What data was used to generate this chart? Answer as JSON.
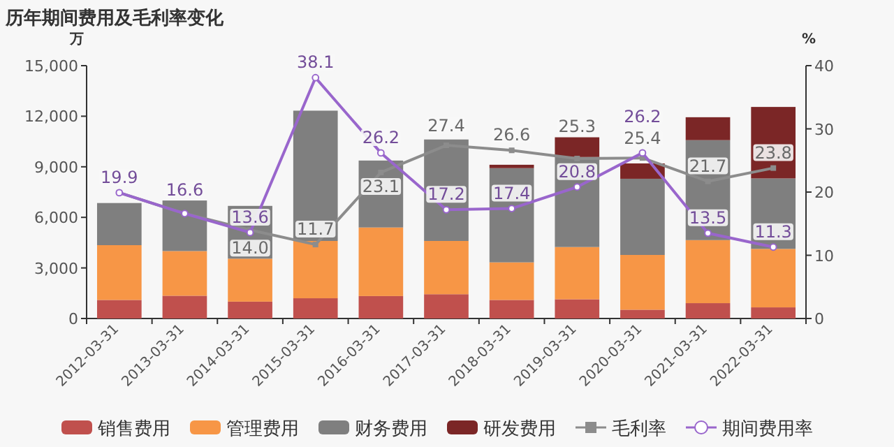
{
  "chart_data": {
    "type": "bar",
    "title": "历年期间费用及毛利率变化",
    "ylabel": "万",
    "y2label": "%",
    "categories": [
      "2012-03-31",
      "2013-03-31",
      "2014-03-31",
      "2015-03-31",
      "2016-03-31",
      "2017-03-31",
      "2018-03-31",
      "2019-03-31",
      "2020-03-31",
      "2021-03-31",
      "2022-03-31"
    ],
    "stacked": true,
    "series": [
      {
        "name": "销售费用",
        "color": "#c0504d",
        "values": [
          1100,
          1350,
          1000,
          1200,
          1330,
          1440,
          1100,
          1140,
          520,
          910,
          660
        ]
      },
      {
        "name": "管理费用",
        "color": "#f79646",
        "values": [
          3250,
          2650,
          2550,
          3400,
          4070,
          3160,
          2230,
          3100,
          3250,
          3740,
          3470
        ]
      },
      {
        "name": "财务费用",
        "color": "#7f7f7f",
        "values": [
          2500,
          3000,
          3130,
          7730,
          3970,
          6020,
          5590,
          5340,
          4520,
          5930,
          4180
        ]
      },
      {
        "name": "研发费用",
        "color": "#7b2626",
        "values": [
          0,
          0,
          0,
          0,
          0,
          0,
          200,
          1170,
          910,
          1360,
          4240
        ]
      },
      {
        "name": "毛利率",
        "type": "line",
        "axis": "y2",
        "marker": "square",
        "color": "#8c8c8c",
        "values": [
          19.9,
          16.6,
          14.0,
          11.7,
          23.1,
          27.4,
          26.6,
          25.3,
          25.4,
          21.7,
          23.8
        ],
        "value_labels": [
          null,
          null,
          "14.0",
          "11.7",
          "23.1",
          "27.4",
          "26.6",
          "25.3",
          "25.4",
          "21.7",
          "23.8"
        ]
      },
      {
        "name": "期间费用率",
        "type": "line",
        "axis": "y2",
        "marker": "circle",
        "color": "#9966cc",
        "values": [
          19.9,
          16.6,
          13.6,
          38.1,
          26.2,
          17.2,
          17.4,
          20.8,
          26.2,
          13.5,
          11.3
        ],
        "value_labels": [
          "19.9",
          "16.6",
          "13.6",
          "38.1",
          "26.2",
          "17.2",
          "17.4",
          "20.8",
          "26.2",
          "13.5",
          "11.3"
        ]
      }
    ],
    "ylim": [
      0,
      15000
    ],
    "yticks": [
      {
        "value": 0,
        "label": "0"
      },
      {
        "value": 3000,
        "label": "3,000"
      },
      {
        "value": 6000,
        "label": "6,000"
      },
      {
        "value": 9000,
        "label": "9,000"
      },
      {
        "value": 12000,
        "label": "12,000"
      },
      {
        "value": 15000,
        "label": "15,000"
      }
    ],
    "y2lim": [
      0,
      40
    ],
    "y2ticks": [
      0,
      10,
      20,
      30,
      40
    ],
    "grid": false,
    "legend": "bottom"
  }
}
